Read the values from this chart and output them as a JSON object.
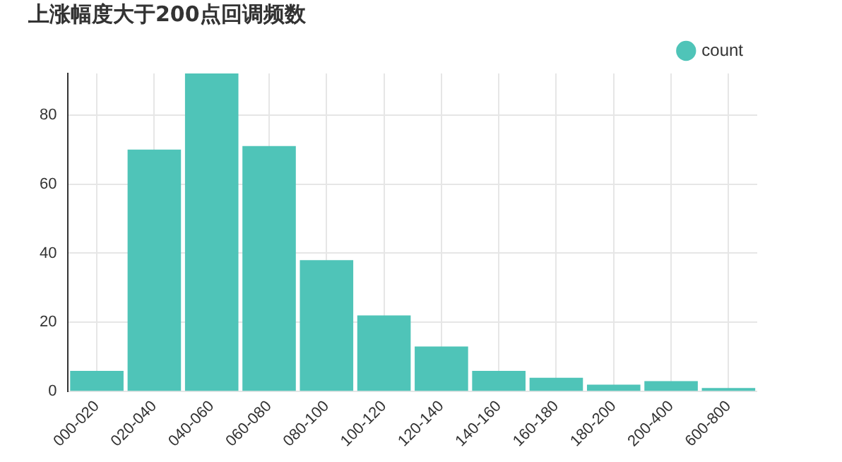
{
  "chart_data": {
    "type": "bar",
    "title": "上涨幅度大于200点回调频数",
    "categories": [
      "000-020",
      "020-040",
      "040-060",
      "060-080",
      "080-100",
      "100-120",
      "120-140",
      "140-160",
      "160-180",
      "180-200",
      "200-400",
      "600-800"
    ],
    "series": [
      {
        "name": "count",
        "color": "#4fc4b8",
        "values": [
          6,
          70,
          92,
          71,
          38,
          22,
          13,
          6,
          4,
          2,
          3,
          1
        ]
      }
    ],
    "ylim": [
      0,
      92
    ],
    "yticks": [
      0,
      20,
      40,
      60,
      80
    ],
    "grid": true,
    "legend": "top right"
  }
}
